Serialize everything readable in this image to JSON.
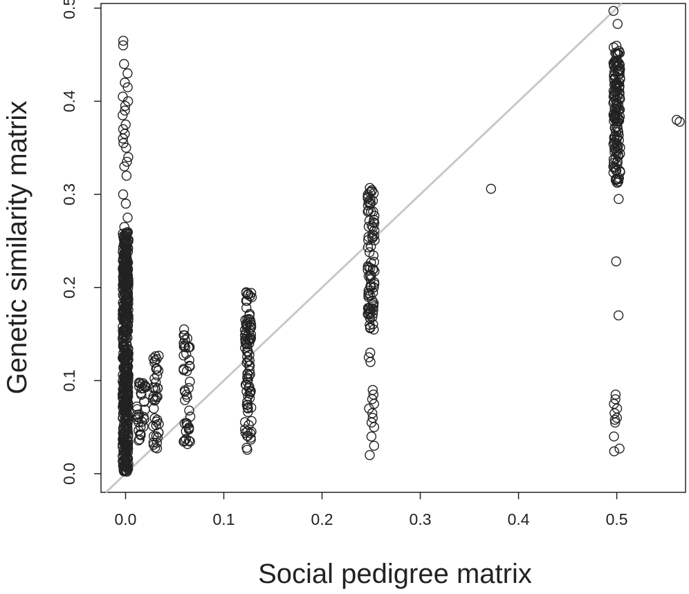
{
  "chart_data": {
    "type": "scatter",
    "title": "",
    "xlabel": "Social pedigree matrix",
    "ylabel": "Genetic similarity matrix",
    "xlim": [
      -0.025,
      0.57
    ],
    "ylim": [
      -0.02,
      0.505
    ],
    "x_ticks": [
      0.0,
      0.1,
      0.2,
      0.3,
      0.4,
      0.5
    ],
    "x_tick_labels": [
      "0.0",
      "0.1",
      "0.2",
      "0.3",
      "0.4",
      "0.5"
    ],
    "y_ticks": [
      0.0,
      0.1,
      0.2,
      0.3,
      0.4,
      0.5
    ],
    "y_tick_labels": [
      "0.0",
      "0.1",
      "0.2",
      "0.3",
      "0.4",
      "0.5"
    ],
    "grid": false,
    "legend": "none",
    "reference_line": {
      "slope": 1,
      "intercept": 0,
      "color": "#c8c8c8"
    },
    "marker": {
      "shape": "open-circle",
      "color": "#222222"
    },
    "clusters": [
      {
        "x_center": 0.0,
        "x_jitter": 0.003,
        "y_min": 0.002,
        "y_max": 0.26,
        "dense_count": 520,
        "extra_y": [
          0.465,
          0.46,
          0.44,
          0.43,
          0.42,
          0.415,
          0.405,
          0.4,
          0.395,
          0.39,
          0.385,
          0.375,
          0.37,
          0.365,
          0.36,
          0.355,
          0.35,
          0.34,
          0.335,
          0.33,
          0.32,
          0.3,
          0.29,
          0.275,
          0.265
        ]
      },
      {
        "x_center": 0.016,
        "x_jitter": 0.005,
        "y_min": 0.03,
        "y_max": 0.1,
        "dense_count": 35,
        "extra_y": []
      },
      {
        "x_center": 0.031,
        "x_jitter": 0.003,
        "y_min": 0.025,
        "y_max": 0.132,
        "dense_count": 40,
        "extra_y": []
      },
      {
        "x_center": 0.0625,
        "x_jitter": 0.0035,
        "y_min": 0.03,
        "y_max": 0.157,
        "dense_count": 45,
        "extra_y": []
      },
      {
        "x_center": 0.125,
        "x_jitter": 0.0035,
        "y_min": 0.025,
        "y_max": 0.195,
        "dense_count": 95,
        "extra_y": []
      },
      {
        "x_center": 0.25,
        "x_jitter": 0.0035,
        "y_min": 0.15,
        "y_max": 0.31,
        "dense_count": 90,
        "extra_y": [
          0.13,
          0.125,
          0.12,
          0.09,
          0.085,
          0.08,
          0.075,
          0.07,
          0.065,
          0.06,
          0.055,
          0.05,
          0.04,
          0.03,
          0.02
        ]
      },
      {
        "x_center": 0.5,
        "x_jitter": 0.0035,
        "y_min": 0.31,
        "y_max": 0.46,
        "dense_count": 150,
        "extra_y": [
          0.497,
          0.483,
          0.295,
          0.228,
          0.17,
          0.085,
          0.08,
          0.075,
          0.07,
          0.065,
          0.06,
          0.058,
          0.055,
          0.04,
          0.027,
          0.024
        ]
      }
    ],
    "outliers": [
      {
        "x": 0.372,
        "y": 0.306
      },
      {
        "x": 0.561,
        "y": 0.38
      },
      {
        "x": 0.564,
        "y": 0.378
      }
    ]
  }
}
